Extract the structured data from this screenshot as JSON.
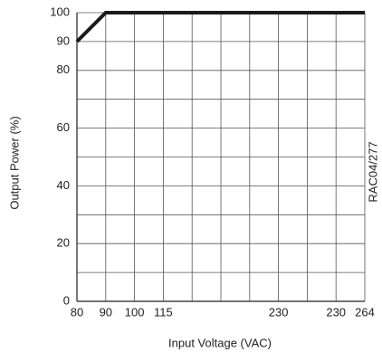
{
  "chart_data": {
    "type": "line",
    "x_label": "Input Voltage (VAC)",
    "y_label": "Output Power (%)",
    "annotation": "RAC04/277",
    "categories": [
      "80",
      "90",
      "100",
      "115",
      null,
      null,
      null,
      "230",
      null,
      "230",
      "264"
    ],
    "series": [
      {
        "color": "#1a1a1a",
        "values": [
          90,
          100,
          100,
          100,
          100,
          100,
          100,
          100,
          100,
          100,
          100
        ]
      }
    ],
    "ylim": [
      0,
      100
    ],
    "yticks": [
      0,
      20,
      40,
      60,
      80,
      90,
      100
    ],
    "ygrid": [
      0,
      10,
      20,
      30,
      40,
      50,
      60,
      70,
      80,
      90,
      100
    ],
    "grid": true
  }
}
